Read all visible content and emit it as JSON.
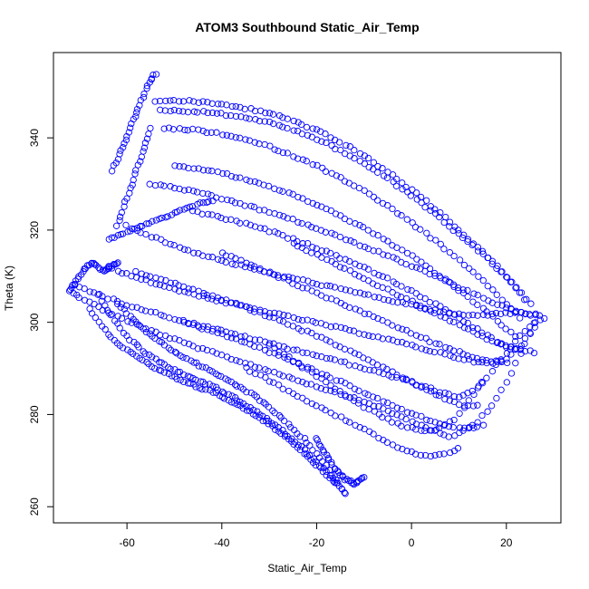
{
  "chart_data": {
    "type": "scatter",
    "title": "ATOM3 Southbound Static_Air_Temp",
    "xlabel": "Static_Air_Temp",
    "ylabel": "Theta (K)",
    "xlim": [
      -75.5,
      31.5
    ],
    "ylim": [
      256.5,
      358.5
    ],
    "x_ticks": [
      -60,
      -40,
      -20,
      0,
      20
    ],
    "y_ticks": [
      260,
      280,
      300,
      320,
      340
    ],
    "grid": false,
    "legend": "none",
    "marker": "open-circle",
    "color": "#0000ff",
    "series": [
      {
        "x": [
          -72,
          -70,
          -67,
          -64,
          -61,
          -58,
          -55,
          -52,
          -49,
          -46,
          -43,
          -40,
          -37,
          -34,
          -31,
          -28,
          -25,
          -22,
          -19,
          -16,
          -13,
          -10,
          -7,
          -4,
          -1,
          2,
          5,
          8,
          11,
          14,
          17,
          20,
          23,
          26
        ],
        "y": [
          307,
          305.5,
          303.8,
          302.2,
          300.8,
          299.4,
          298.2,
          297,
          295.9,
          294.8,
          293.8,
          292.8,
          291.8,
          290.8,
          289.8,
          288.8,
          287.8,
          286.8,
          285.8,
          284.8,
          283.8,
          282.8,
          281.6,
          280.3,
          279,
          277.6,
          276.3,
          275,
          276.5,
          278.5,
          282,
          287,
          293,
          300
        ]
      },
      {
        "x": [
          -71,
          -68,
          -65,
          -62,
          -59,
          -56,
          -53,
          -50,
          -47,
          -44,
          -41,
          -38,
          -35,
          -32,
          -29,
          -26,
          -23,
          -20,
          -17,
          -14,
          -11,
          -8,
          -5,
          -2,
          1,
          4,
          7,
          10,
          13,
          16,
          19,
          22,
          25,
          28
        ],
        "y": [
          308,
          306.8,
          305.6,
          304.5,
          303.5,
          302.6,
          301.7,
          300.8,
          300,
          299.2,
          298.4,
          297.6,
          296.8,
          296,
          295.2,
          294.4,
          293.6,
          292.8,
          292,
          291.2,
          290.3,
          289.4,
          288.5,
          287.6,
          286.6,
          285.6,
          284.6,
          283.6,
          285,
          288,
          292,
          296,
          299,
          301
        ]
      },
      {
        "x": [
          -64,
          -61,
          -58,
          -55,
          -52,
          -49,
          -46,
          -43,
          -40,
          -37,
          -34,
          -31,
          -28,
          -25,
          -22,
          -19,
          -16,
          -13,
          -10,
          -7,
          -4,
          -1,
          2,
          5,
          8,
          11,
          14,
          17,
          20,
          23,
          26
        ],
        "y": [
          312,
          310.8,
          309.7,
          308.7,
          307.8,
          306.9,
          306.1,
          305.3,
          304.5,
          303.8,
          303.1,
          302.4,
          301.7,
          301,
          300.3,
          299.6,
          298.9,
          298.2,
          297.5,
          296.8,
          296,
          295.2,
          294.4,
          293.6,
          292.8,
          292,
          291.3,
          291,
          292,
          295,
          299
        ]
      },
      {
        "x": [
          -60,
          -57,
          -54,
          -51,
          -48,
          -45,
          -42,
          -39,
          -36,
          -33,
          -30,
          -27,
          -24,
          -21,
          -18,
          -15,
          -12,
          -9,
          -6,
          -3,
          0,
          3,
          6,
          9,
          12,
          15,
          18,
          21,
          24,
          27
        ],
        "y": [
          321,
          319.5,
          318.2,
          317,
          315.9,
          314.9,
          314,
          313.1,
          312.3,
          311.5,
          310.7,
          310,
          309.3,
          308.6,
          307.9,
          307.2,
          306.5,
          305.8,
          305.1,
          304.4,
          303.7,
          303,
          302.3,
          301.8,
          301.5,
          301.5,
          302,
          302,
          302,
          301.5
        ]
      },
      {
        "x": [
          -55,
          -52,
          -49,
          -46,
          -43,
          -40,
          -37,
          -34,
          -31,
          -28,
          -25,
          -22,
          -19,
          -16,
          -13,
          -10,
          -7,
          -4,
          -1,
          2,
          5,
          8,
          11,
          14,
          17,
          20,
          23,
          26
        ],
        "y": [
          330,
          329.5,
          329,
          328.3,
          327.6,
          326.8,
          326,
          325.1,
          324.2,
          323.2,
          322.2,
          321.1,
          320,
          318.8,
          317.6,
          316.4,
          315.2,
          314,
          312.7,
          311.4,
          310,
          308.6,
          307.2,
          305.8,
          304.4,
          303,
          302,
          301.5
        ]
      },
      {
        "x": [
          -53,
          -50,
          -47,
          -44,
          -41,
          -38,
          -35,
          -32,
          -29,
          -26,
          -23,
          -20,
          -17,
          -14,
          -11,
          -8,
          -5,
          -2,
          1,
          4,
          7,
          10,
          13,
          16,
          19,
          22,
          25
        ],
        "y": [
          346,
          345.9,
          345.8,
          345.6,
          345.3,
          344.9,
          344.4,
          343.8,
          343,
          342.1,
          341,
          339.7,
          338.3,
          336.7,
          335,
          333.1,
          331.1,
          329,
          326.7,
          324.3,
          321.8,
          319.2,
          316.6,
          313.8,
          310.8,
          307.5,
          304
        ]
      },
      {
        "x": [
          -54,
          -51,
          -48,
          -45,
          -42,
          -39,
          -36,
          -33,
          -30,
          -27,
          -24,
          -21,
          -18,
          -15,
          -12,
          -9,
          -6,
          -3,
          0,
          3,
          6,
          9,
          12,
          15,
          18,
          21,
          24
        ],
        "y": [
          348,
          348,
          348,
          347.8,
          347.5,
          347.1,
          346.6,
          346,
          345.3,
          344.4,
          343.3,
          342.1,
          340.7,
          339.1,
          337.3,
          335.4,
          333.3,
          331.1,
          328.7,
          326.2,
          323.6,
          320.9,
          318.1,
          315.2,
          312.1,
          308.7,
          305
        ]
      },
      {
        "x": [
          -52,
          -49,
          -46,
          -43,
          -40,
          -37,
          -34,
          -31,
          -28,
          -25,
          -22,
          -19,
          -16,
          -13,
          -10,
          -7,
          -4,
          -1,
          2,
          5,
          8,
          11,
          14,
          17,
          20,
          23
        ],
        "y": [
          342,
          341.9,
          341.7,
          341.3,
          340.8,
          340.1,
          339.3,
          338.4,
          337.3,
          336.1,
          334.8,
          333.4,
          331.9,
          330.2,
          328.4,
          326.5,
          324.5,
          322.3,
          320,
          317.6,
          315.1,
          312.5,
          309.8,
          307,
          304,
          301
        ]
      },
      {
        "x": [
          -50,
          -47,
          -44,
          -41,
          -38,
          -35,
          -32,
          -29,
          -26,
          -23,
          -20,
          -17,
          -14,
          -11,
          -8,
          -5,
          -2,
          1,
          4,
          7,
          10,
          13,
          16,
          19,
          22
        ],
        "y": [
          334,
          333.6,
          333.1,
          332.5,
          331.8,
          331,
          330.1,
          329.1,
          328,
          326.8,
          325.5,
          324.1,
          322.6,
          321,
          319.3,
          317.5,
          315.6,
          313.6,
          311.5,
          309.3,
          307,
          304.6,
          302.1,
          299.5,
          297
        ]
      },
      {
        "x": [
          -46,
          -43,
          -40,
          -37,
          -34,
          -31,
          -28,
          -25,
          -22,
          -19,
          -16,
          -13,
          -10,
          -7,
          -4,
          -1,
          2,
          5,
          8,
          11,
          14,
          17,
          20,
          23
        ],
        "y": [
          324,
          323.4,
          322.7,
          321.9,
          321,
          320.1,
          319.1,
          318,
          316.9,
          315.7,
          314.5,
          313.2,
          311.8,
          310.4,
          308.9,
          307.3,
          305.6,
          303.9,
          302.1,
          300.3,
          298.4,
          296.5,
          294.5,
          294
        ]
      },
      {
        "x": [
          -58,
          -55,
          -52,
          -49,
          -46,
          -43,
          -40,
          -37,
          -34,
          -31,
          -28,
          -25,
          -22,
          -19,
          -16,
          -13,
          -10,
          -7,
          -4,
          -1,
          2,
          5,
          8,
          11,
          14
        ],
        "y": [
          311,
          310,
          309,
          308,
          307,
          306,
          305,
          304,
          302.8,
          301.6,
          300.4,
          299.2,
          297.9,
          296.6,
          295.2,
          293.8,
          292.3,
          290.8,
          289.2,
          287.6,
          286,
          284.4,
          283,
          282,
          282
        ]
      },
      {
        "x": [
          -62,
          -60,
          -58,
          -56,
          -54,
          -52,
          -50,
          -48,
          -46,
          -44,
          -42,
          -40,
          -38,
          -36,
          -34,
          -32,
          -30,
          -28,
          -26,
          -24,
          -22,
          -20,
          -18,
          -16,
          -14
        ],
        "y": [
          304,
          302,
          300,
          298,
          296.5,
          295,
          293.7,
          292.5,
          291.4,
          290.3,
          289.2,
          288.1,
          287,
          285.8,
          284.6,
          283.2,
          281.6,
          279.8,
          278,
          276,
          274,
          271.5,
          269,
          266,
          263
        ]
      },
      {
        "x": [
          -68,
          -66,
          -64,
          -62,
          -60,
          -58,
          -56,
          -54,
          -52,
          -50,
          -48,
          -46,
          -44,
          -42,
          -40,
          -38,
          -36,
          -34,
          -32,
          -30,
          -28,
          -26,
          -24,
          -22,
          -20,
          -18,
          -16
        ],
        "y": [
          303,
          300,
          297.5,
          295.5,
          294,
          292.5,
          291.2,
          290,
          289,
          288,
          287.2,
          286.4,
          285.6,
          284.8,
          283.9,
          282.9,
          281.8,
          280.6,
          279.3,
          277.9,
          276.4,
          274.8,
          273,
          271,
          269,
          267,
          265
        ]
      },
      {
        "x": [
          -66,
          -64,
          -62,
          -60,
          -58,
          -56,
          -54,
          -52,
          -50,
          -48,
          -46,
          -44,
          -42,
          -40,
          -38,
          -36,
          -34,
          -32,
          -30,
          -28,
          -26,
          -24,
          -22,
          -20,
          -18,
          -16,
          -14
        ],
        "y": [
          306,
          302.5,
          299.5,
          297,
          295,
          293.3,
          291.9,
          290.7,
          289.7,
          288.8,
          287.9,
          287,
          286.1,
          285.1,
          284,
          282.8,
          281.5,
          280.1,
          278.6,
          277,
          275.3,
          273.5,
          271.6,
          269.6,
          267.5,
          265.3,
          263
        ]
      },
      {
        "x": [
          -63,
          -62,
          -61,
          -60,
          -59,
          -58,
          -57,
          -56,
          -55,
          -54
        ],
        "y": [
          333,
          335.5,
          338,
          340.5,
          343,
          345.5,
          348,
          350.5,
          352.5,
          354
        ]
      },
      {
        "x": [
          -62,
          -61,
          -60,
          -59,
          -58,
          -57,
          -56,
          -55
        ],
        "y": [
          321,
          324,
          327,
          330,
          333,
          336,
          339,
          342
        ]
      },
      {
        "x": [
          -72,
          -71,
          -70,
          -69,
          -68,
          -67,
          -66,
          -65,
          -64,
          -63,
          -62
        ],
        "y": [
          307,
          308.5,
          310,
          311.5,
          312.5,
          313,
          312,
          311,
          311.5,
          312.5,
          313
        ]
      },
      {
        "x": [
          -64,
          -62,
          -60,
          -58,
          -56,
          -54,
          -52,
          -50,
          -48,
          -46,
          -44,
          -42
        ],
        "y": [
          318,
          318.8,
          319.6,
          320.4,
          321.2,
          322,
          322.8,
          323.6,
          324.4,
          325.2,
          326,
          326.5
        ]
      },
      {
        "x": [
          -48,
          -45,
          -42,
          -39,
          -36,
          -33,
          -30,
          -27,
          -24,
          -21,
          -18,
          -15,
          -12,
          -9,
          -6,
          -3,
          0,
          3,
          6,
          9,
          12,
          15
        ],
        "y": [
          300,
          299,
          298,
          297,
          296,
          294.8,
          293.6,
          292.4,
          291.1,
          289.8,
          288.5,
          287.1,
          285.7,
          284.3,
          282.9,
          281.5,
          280.2,
          279,
          278,
          277.3,
          277,
          277.5
        ]
      },
      {
        "x": [
          -30,
          -27,
          -24,
          -21,
          -18,
          -15,
          -12,
          -9,
          -6,
          -3,
          0,
          3,
          6,
          9,
          12,
          15
        ],
        "y": [
          295,
          293,
          291,
          289,
          287,
          285,
          283,
          281,
          279.5,
          278,
          277,
          276.5,
          277,
          279,
          283,
          287
        ]
      },
      {
        "x": [
          -35,
          -32,
          -29,
          -26,
          -23,
          -20,
          -17,
          -14,
          -11,
          -8,
          -5,
          -2,
          1,
          4,
          7,
          10
        ],
        "y": [
          290,
          288.4,
          286.8,
          285.2,
          283.6,
          282,
          280.4,
          278.8,
          277.2,
          275.6,
          274,
          272.5,
          271.5,
          271,
          271.5,
          272.5
        ]
      },
      {
        "x": [
          -25,
          -22,
          -19,
          -16,
          -13,
          -10,
          -7,
          -4,
          -1,
          2,
          5,
          8,
          11,
          14,
          17,
          20,
          23,
          26
        ],
        "y": [
          317,
          315.5,
          314,
          312.5,
          311,
          309.5,
          308,
          306.5,
          305,
          303.5,
          302,
          300.5,
          299,
          297.5,
          296,
          295,
          294,
          293.5
        ]
      },
      {
        "x": [
          -40,
          -37,
          -34,
          -31,
          -28,
          -25,
          -22,
          -19,
          -16,
          -13,
          -10,
          -7,
          -4,
          -1,
          2,
          5,
          8,
          11,
          14,
          17,
          20
        ],
        "y": [
          315,
          313.7,
          312.4,
          311.1,
          309.8,
          308.5,
          307.2,
          305.9,
          304.6,
          303.3,
          302,
          300.7,
          299.4,
          298.1,
          296.8,
          295.5,
          294.3,
          293.2,
          292.3,
          291.6,
          291.2
        ]
      },
      {
        "x": [
          -20,
          -19,
          -18,
          -17,
          -16,
          -15,
          -14,
          -13,
          -12,
          -11,
          -10
        ],
        "y": [
          275,
          273,
          271,
          269.5,
          268,
          267,
          266,
          265.5,
          265,
          265.5,
          266.5
        ]
      }
    ]
  }
}
